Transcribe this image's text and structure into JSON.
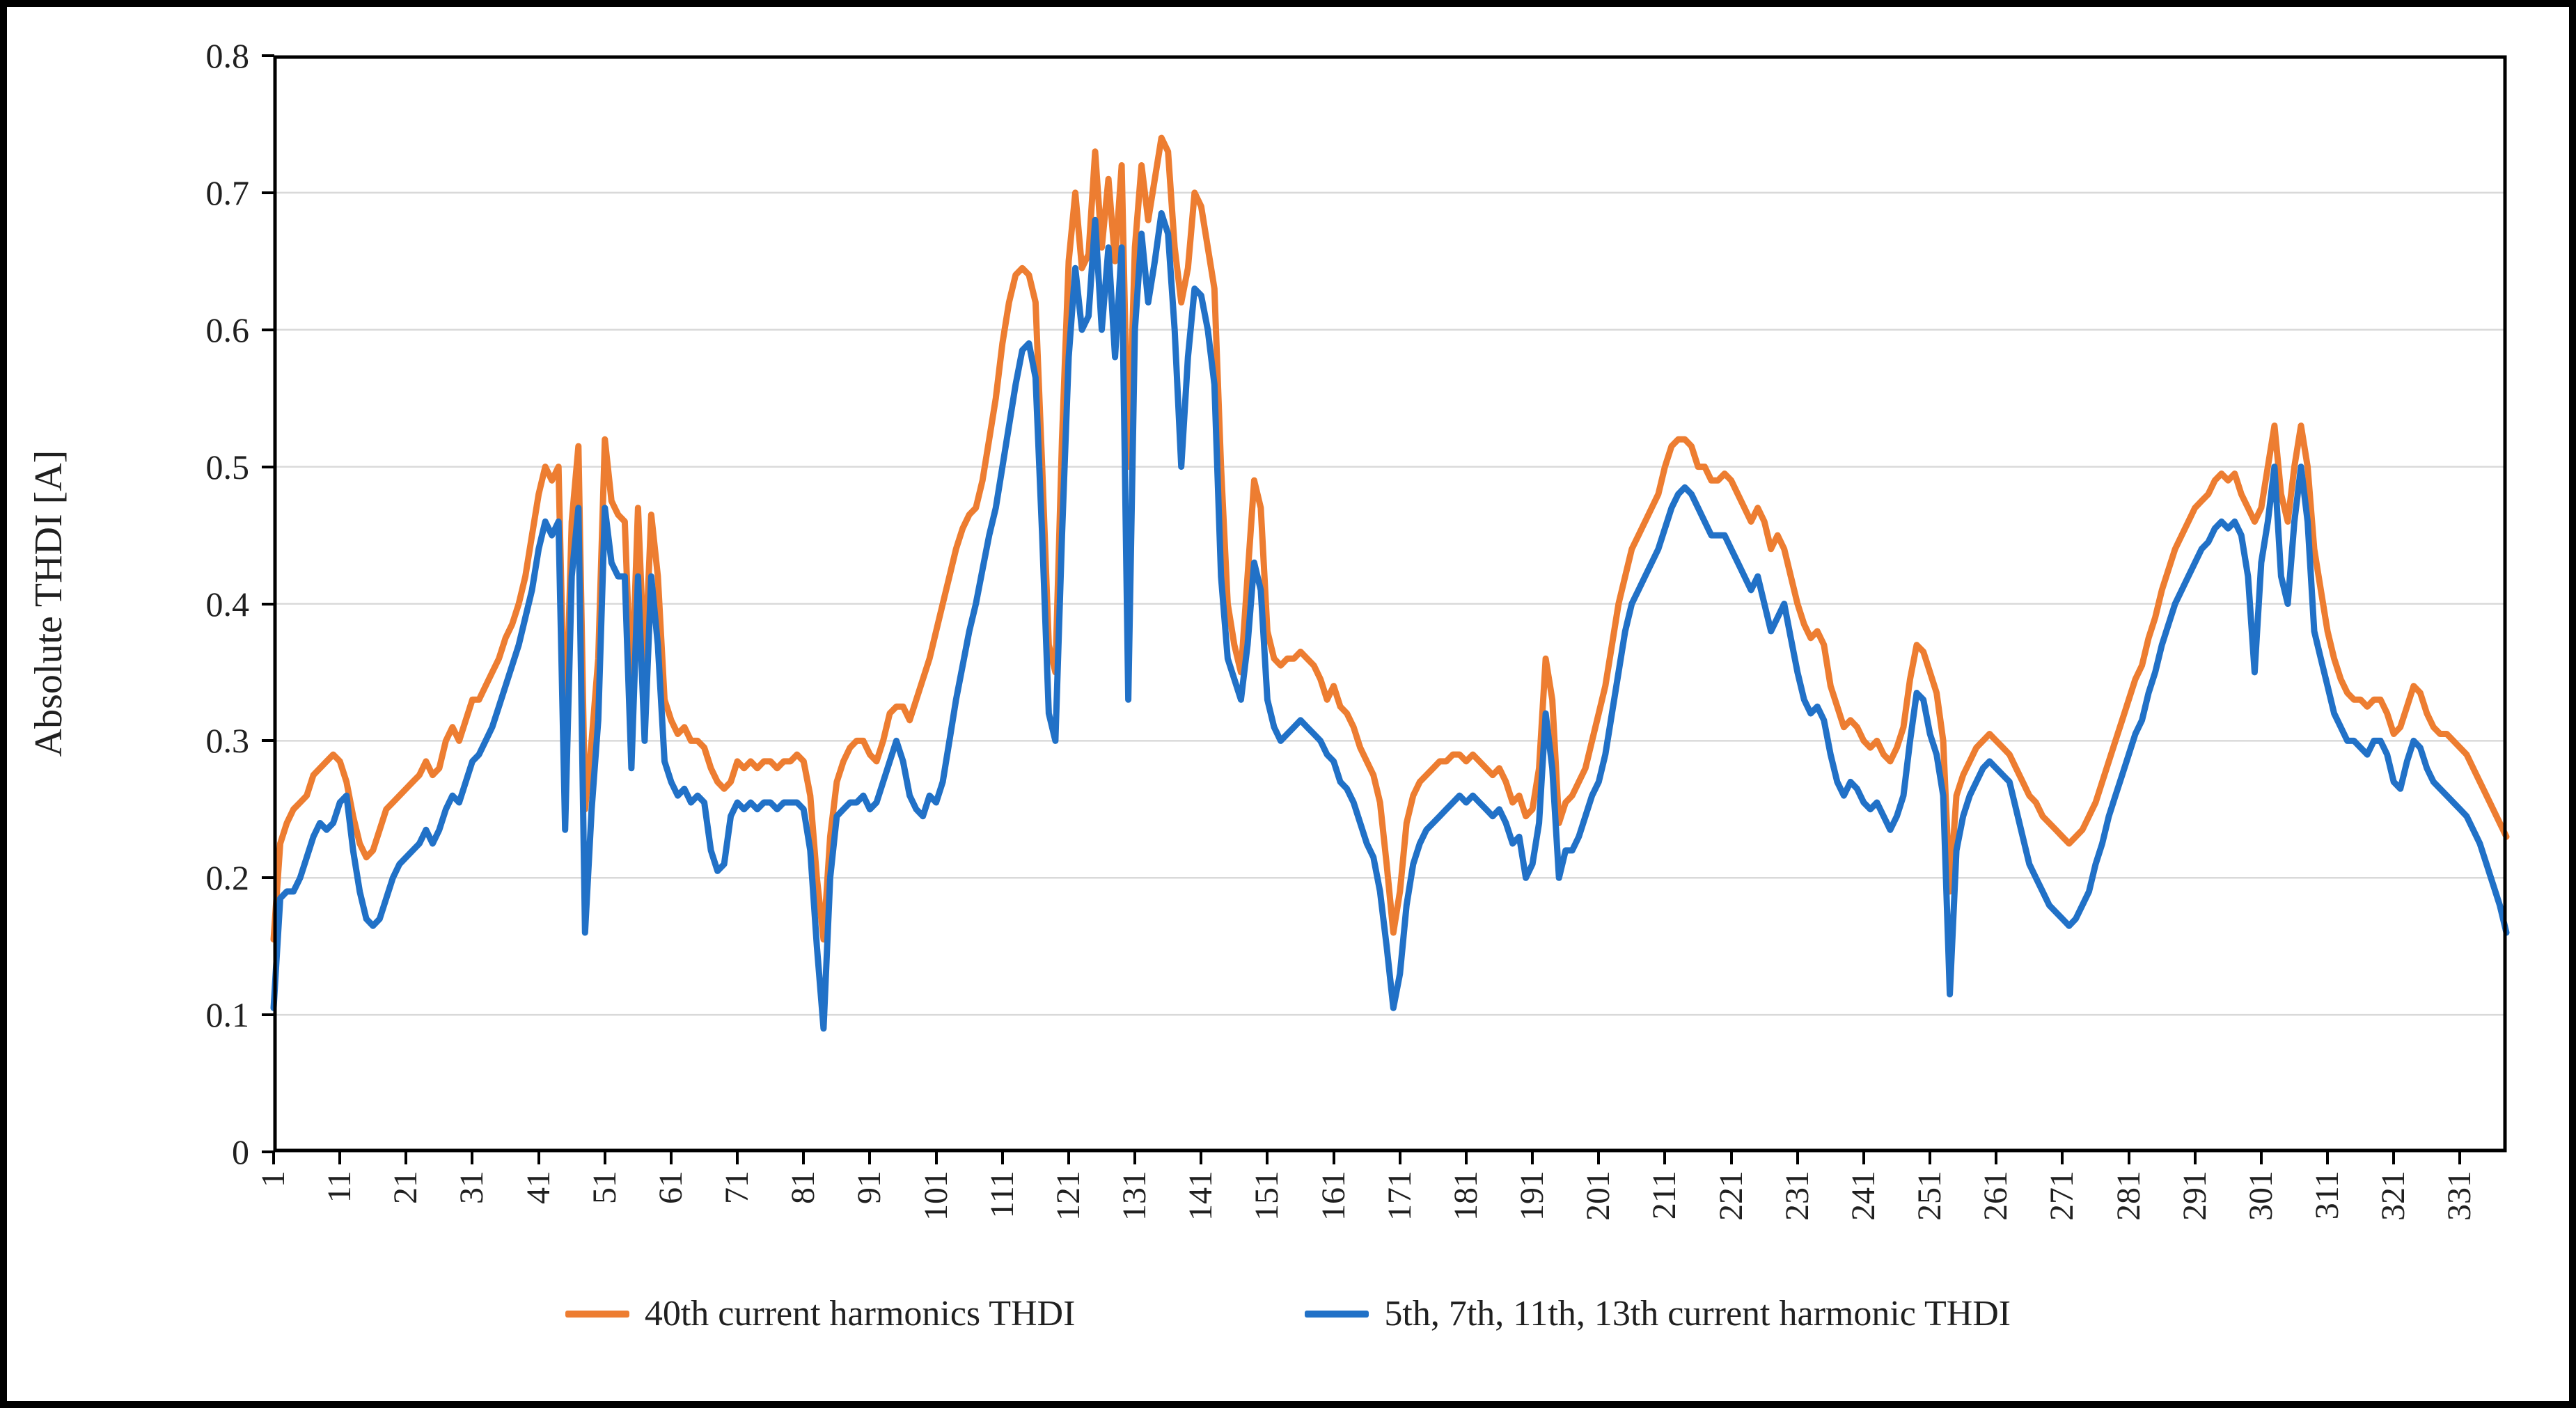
{
  "figure": {
    "background": "#ffffff",
    "border_color": "#000000",
    "plot_frame_color": "#000000",
    "gridline_color": "#d9d9d9",
    "text_color": "#202020"
  },
  "legend": {
    "position": "bottom-center",
    "items": [
      {
        "label": "40th current harmonics THDI",
        "color": "#ED7D31"
      },
      {
        "label": "5th, 7th, 11th, 13th current harmonic THDI",
        "color": "#2171C7"
      }
    ]
  },
  "chart_data": {
    "type": "line",
    "title": "",
    "xlabel": "",
    "ylabel": "Absolute THDI [A]",
    "ylim": [
      0,
      0.8
    ],
    "y_ticks": [
      "0",
      "0.1",
      "0.2",
      "0.3",
      "0.4",
      "0.5",
      "0.6",
      "0.7",
      "0.8"
    ],
    "y_tick_values": [
      0,
      0.1,
      0.2,
      0.3,
      0.4,
      0.5,
      0.6,
      0.7,
      0.8
    ],
    "grid": "horizontal",
    "n_points": 338,
    "x_tick_labels": [
      "1",
      "11",
      "21",
      "31",
      "41",
      "51",
      "61",
      "71",
      "81",
      "91",
      "101",
      "111",
      "121",
      "131",
      "141",
      "151",
      "161",
      "171",
      "181",
      "191",
      "201",
      "211",
      "221",
      "231",
      "241",
      "251",
      "261",
      "271",
      "281",
      "291",
      "301",
      "311",
      "321",
      "331"
    ],
    "x_tick_points": [
      1,
      11,
      21,
      31,
      41,
      51,
      61,
      71,
      81,
      91,
      101,
      111,
      121,
      131,
      141,
      151,
      161,
      171,
      181,
      191,
      201,
      211,
      221,
      231,
      241,
      251,
      261,
      271,
      281,
      291,
      301,
      311,
      321,
      331
    ],
    "series": [
      {
        "name": "40th current harmonics THDI",
        "color": "#ED7D31",
        "values": [
          0.155,
          0.225,
          0.24,
          0.25,
          0.255,
          0.26,
          0.275,
          0.28,
          0.285,
          0.29,
          0.285,
          0.27,
          0.245,
          0.225,
          0.215,
          0.22,
          0.235,
          0.25,
          0.255,
          0.26,
          0.265,
          0.27,
          0.275,
          0.285,
          0.275,
          0.28,
          0.3,
          0.31,
          0.3,
          0.315,
          0.33,
          0.33,
          0.34,
          0.35,
          0.36,
          0.375,
          0.385,
          0.4,
          0.42,
          0.45,
          0.48,
          0.5,
          0.49,
          0.5,
          0.29,
          0.46,
          0.515,
          0.25,
          0.3,
          0.36,
          0.52,
          0.475,
          0.465,
          0.46,
          0.33,
          0.47,
          0.35,
          0.465,
          0.42,
          0.33,
          0.315,
          0.305,
          0.31,
          0.3,
          0.3,
          0.295,
          0.28,
          0.27,
          0.265,
          0.27,
          0.285,
          0.28,
          0.285,
          0.28,
          0.285,
          0.285,
          0.28,
          0.285,
          0.285,
          0.29,
          0.285,
          0.26,
          0.2,
          0.155,
          0.23,
          0.27,
          0.285,
          0.295,
          0.3,
          0.3,
          0.29,
          0.285,
          0.3,
          0.32,
          0.325,
          0.325,
          0.315,
          0.33,
          0.345,
          0.36,
          0.38,
          0.4,
          0.42,
          0.44,
          0.455,
          0.465,
          0.47,
          0.49,
          0.52,
          0.55,
          0.59,
          0.62,
          0.64,
          0.645,
          0.64,
          0.62,
          0.5,
          0.37,
          0.35,
          0.52,
          0.65,
          0.7,
          0.645,
          0.655,
          0.73,
          0.66,
          0.71,
          0.65,
          0.72,
          0.5,
          0.66,
          0.72,
          0.68,
          0.71,
          0.74,
          0.73,
          0.66,
          0.62,
          0.645,
          0.7,
          0.69,
          0.66,
          0.63,
          0.5,
          0.4,
          0.37,
          0.35,
          0.42,
          0.49,
          0.47,
          0.38,
          0.36,
          0.355,
          0.36,
          0.36,
          0.365,
          0.36,
          0.355,
          0.345,
          0.33,
          0.34,
          0.325,
          0.32,
          0.31,
          0.295,
          0.285,
          0.275,
          0.255,
          0.21,
          0.16,
          0.19,
          0.24,
          0.26,
          0.27,
          0.275,
          0.28,
          0.285,
          0.285,
          0.29,
          0.29,
          0.285,
          0.29,
          0.285,
          0.28,
          0.275,
          0.28,
          0.27,
          0.255,
          0.26,
          0.245,
          0.25,
          0.28,
          0.36,
          0.33,
          0.24,
          0.255,
          0.26,
          0.27,
          0.28,
          0.3,
          0.32,
          0.34,
          0.37,
          0.4,
          0.42,
          0.44,
          0.45,
          0.46,
          0.47,
          0.48,
          0.5,
          0.515,
          0.52,
          0.52,
          0.515,
          0.5,
          0.5,
          0.49,
          0.49,
          0.495,
          0.49,
          0.48,
          0.47,
          0.46,
          0.47,
          0.46,
          0.44,
          0.45,
          0.44,
          0.42,
          0.4,
          0.385,
          0.375,
          0.38,
          0.37,
          0.34,
          0.325,
          0.31,
          0.315,
          0.31,
          0.3,
          0.295,
          0.3,
          0.29,
          0.285,
          0.295,
          0.31,
          0.345,
          0.37,
          0.365,
          0.35,
          0.335,
          0.3,
          0.19,
          0.26,
          0.275,
          0.285,
          0.295,
          0.3,
          0.305,
          0.3,
          0.295,
          0.29,
          0.28,
          0.27,
          0.26,
          0.255,
          0.245,
          0.24,
          0.235,
          0.23,
          0.225,
          0.23,
          0.235,
          0.245,
          0.255,
          0.27,
          0.285,
          0.3,
          0.315,
          0.33,
          0.345,
          0.355,
          0.375,
          0.39,
          0.41,
          0.425,
          0.44,
          0.45,
          0.46,
          0.47,
          0.475,
          0.48,
          0.49,
          0.495,
          0.49,
          0.495,
          0.48,
          0.47,
          0.46,
          0.47,
          0.5,
          0.53,
          0.48,
          0.46,
          0.5,
          0.53,
          0.5,
          0.44,
          0.41,
          0.38,
          0.36,
          0.345,
          0.335,
          0.33,
          0.33,
          0.325,
          0.33,
          0.33,
          0.32,
          0.305,
          0.31,
          0.325,
          0.34,
          0.335,
          0.32,
          0.31,
          0.305,
          0.305,
          0.3,
          0.295,
          0.29,
          0.28,
          0.27,
          0.26,
          0.25,
          0.24,
          0.23
        ]
      },
      {
        "name": "5th, 7th, 11th, 13th current harmonic THDI",
        "color": "#2171C7",
        "values": [
          0.105,
          0.185,
          0.19,
          0.19,
          0.2,
          0.215,
          0.23,
          0.24,
          0.235,
          0.24,
          0.255,
          0.26,
          0.22,
          0.19,
          0.17,
          0.165,
          0.17,
          0.185,
          0.2,
          0.21,
          0.215,
          0.22,
          0.225,
          0.235,
          0.225,
          0.235,
          0.25,
          0.26,
          0.255,
          0.27,
          0.285,
          0.29,
          0.3,
          0.31,
          0.325,
          0.34,
          0.355,
          0.37,
          0.39,
          0.41,
          0.44,
          0.46,
          0.45,
          0.46,
          0.235,
          0.42,
          0.47,
          0.16,
          0.25,
          0.315,
          0.47,
          0.43,
          0.42,
          0.42,
          0.28,
          0.42,
          0.3,
          0.42,
          0.37,
          0.285,
          0.27,
          0.26,
          0.265,
          0.255,
          0.26,
          0.255,
          0.22,
          0.205,
          0.21,
          0.245,
          0.255,
          0.25,
          0.255,
          0.25,
          0.255,
          0.255,
          0.25,
          0.255,
          0.255,
          0.255,
          0.25,
          0.22,
          0.15,
          0.09,
          0.2,
          0.245,
          0.25,
          0.255,
          0.255,
          0.26,
          0.25,
          0.255,
          0.27,
          0.285,
          0.3,
          0.285,
          0.26,
          0.25,
          0.245,
          0.26,
          0.255,
          0.27,
          0.3,
          0.33,
          0.355,
          0.38,
          0.4,
          0.425,
          0.45,
          0.47,
          0.5,
          0.53,
          0.56,
          0.585,
          0.59,
          0.565,
          0.45,
          0.32,
          0.3,
          0.45,
          0.58,
          0.645,
          0.6,
          0.61,
          0.68,
          0.6,
          0.66,
          0.58,
          0.66,
          0.33,
          0.6,
          0.67,
          0.62,
          0.65,
          0.685,
          0.67,
          0.6,
          0.5,
          0.58,
          0.63,
          0.625,
          0.6,
          0.56,
          0.42,
          0.36,
          0.345,
          0.33,
          0.37,
          0.43,
          0.41,
          0.33,
          0.31,
          0.3,
          0.305,
          0.31,
          0.315,
          0.31,
          0.305,
          0.3,
          0.29,
          0.285,
          0.27,
          0.265,
          0.255,
          0.24,
          0.225,
          0.215,
          0.19,
          0.15,
          0.105,
          0.13,
          0.18,
          0.21,
          0.225,
          0.235,
          0.24,
          0.245,
          0.25,
          0.255,
          0.26,
          0.255,
          0.26,
          0.255,
          0.25,
          0.245,
          0.25,
          0.24,
          0.225,
          0.23,
          0.2,
          0.21,
          0.24,
          0.32,
          0.28,
          0.2,
          0.22,
          0.22,
          0.23,
          0.245,
          0.26,
          0.27,
          0.29,
          0.32,
          0.35,
          0.38,
          0.4,
          0.41,
          0.42,
          0.43,
          0.44,
          0.455,
          0.47,
          0.48,
          0.485,
          0.48,
          0.47,
          0.46,
          0.45,
          0.45,
          0.45,
          0.44,
          0.43,
          0.42,
          0.41,
          0.42,
          0.4,
          0.38,
          0.39,
          0.4,
          0.375,
          0.35,
          0.33,
          0.32,
          0.325,
          0.315,
          0.29,
          0.27,
          0.26,
          0.27,
          0.265,
          0.255,
          0.25,
          0.255,
          0.245,
          0.235,
          0.245,
          0.26,
          0.3,
          0.335,
          0.33,
          0.305,
          0.29,
          0.26,
          0.115,
          0.22,
          0.245,
          0.26,
          0.27,
          0.28,
          0.285,
          0.28,
          0.275,
          0.27,
          0.25,
          0.23,
          0.21,
          0.2,
          0.19,
          0.18,
          0.175,
          0.17,
          0.165,
          0.17,
          0.18,
          0.19,
          0.21,
          0.225,
          0.245,
          0.26,
          0.275,
          0.29,
          0.305,
          0.315,
          0.335,
          0.35,
          0.37,
          0.385,
          0.4,
          0.41,
          0.42,
          0.43,
          0.44,
          0.445,
          0.455,
          0.46,
          0.455,
          0.46,
          0.45,
          0.42,
          0.35,
          0.43,
          0.46,
          0.5,
          0.42,
          0.4,
          0.46,
          0.5,
          0.46,
          0.38,
          0.36,
          0.34,
          0.32,
          0.31,
          0.3,
          0.3,
          0.295,
          0.29,
          0.3,
          0.3,
          0.29,
          0.27,
          0.265,
          0.285,
          0.3,
          0.295,
          0.28,
          0.27,
          0.265,
          0.26,
          0.255,
          0.25,
          0.245,
          0.235,
          0.225,
          0.21,
          0.195,
          0.18,
          0.16
        ]
      }
    ]
  }
}
